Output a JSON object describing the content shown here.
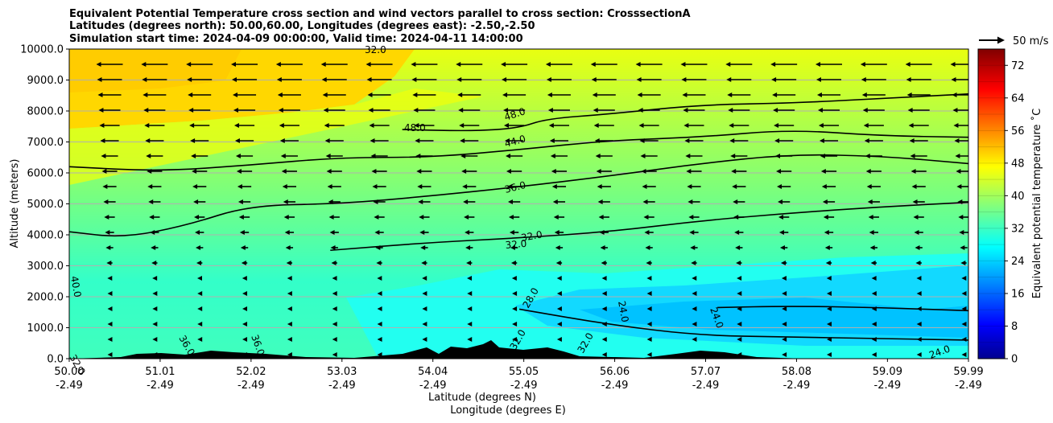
{
  "chart_data": {
    "type": "heatmap",
    "title_lines": [
      "Equivalent Potential Temperature cross section and wind vectors parallel to cross section: CrosssectionA",
      "Latitudes (degrees north): 50.00,60.00, Longitudes (degrees east): -2.50,-2.50",
      "Simulation start time: 2024-04-09 00:00:00, Valid time: 2024-04-11 14:00:00"
    ],
    "ylabel": "Altitude (meters)",
    "xlabel_lines": [
      "Latitude (degrees N)",
      "Longitude (degrees E)"
    ],
    "ylim": [
      0,
      10000
    ],
    "xlim": [
      50.0,
      59.99
    ],
    "grid": "horizontal",
    "yticks": [
      {
        "value": 0,
        "label": "0.0"
      },
      {
        "value": 1000,
        "label": "1000.0"
      },
      {
        "value": 2000,
        "label": "2000.0"
      },
      {
        "value": 3000,
        "label": "3000.0"
      },
      {
        "value": 4000,
        "label": "4000.0"
      },
      {
        "value": 5000,
        "label": "5000.0"
      },
      {
        "value": 6000,
        "label": "6000.0"
      },
      {
        "value": 7000,
        "label": "7000.0"
      },
      {
        "value": 8000,
        "label": "8000.0"
      },
      {
        "value": 9000,
        "label": "9000.0"
      },
      {
        "value": 10000,
        "label": "10000.0"
      }
    ],
    "xticks": [
      {
        "value": 50.0,
        "lat": "50.00",
        "lon": "-2.49"
      },
      {
        "value": 51.01,
        "lat": "51.01",
        "lon": "-2.49"
      },
      {
        "value": 52.02,
        "lat": "52.02",
        "lon": "-2.49"
      },
      {
        "value": 53.03,
        "lat": "53.03",
        "lon": "-2.49"
      },
      {
        "value": 54.04,
        "lat": "54.04",
        "lon": "-2.49"
      },
      {
        "value": 55.05,
        "lat": "55.05",
        "lon": "-2.49"
      },
      {
        "value": 56.06,
        "lat": "56.06",
        "lon": "-2.49"
      },
      {
        "value": 57.07,
        "lat": "57.07",
        "lon": "-2.49"
      },
      {
        "value": 58.08,
        "lat": "58.08",
        "lon": "-2.49"
      },
      {
        "value": 59.09,
        "lat": "59.09",
        "lon": "-2.49"
      },
      {
        "value": 59.99,
        "lat": "59.99",
        "lon": "-2.49"
      }
    ],
    "colorbar": {
      "label": "Equivalent potential temperature ˚C",
      "range": [
        0,
        76
      ],
      "ticks": [
        "0",
        "8",
        "16",
        "24",
        "32",
        "40",
        "48",
        "56",
        "64",
        "72"
      ],
      "colormap": "jet"
    },
    "quiver_key": {
      "label": "50 m/s",
      "speed": 50
    },
    "contours": [
      {
        "level": "48.0",
        "points": [
          [
            53.7,
            7400
          ],
          [
            54.5,
            7350
          ],
          [
            55.0,
            7450
          ],
          [
            55.3,
            7750
          ],
          [
            56.0,
            7900
          ],
          [
            57.0,
            8200
          ],
          [
            58.0,
            8250
          ],
          [
            59.0,
            8400
          ],
          [
            59.99,
            8550
          ]
        ]
      },
      {
        "level": "44.0",
        "points": [
          [
            50.0,
            6200
          ],
          [
            51.0,
            6050
          ],
          [
            52.0,
            6250
          ],
          [
            53.0,
            6500
          ],
          [
            54.0,
            6500
          ],
          [
            55.0,
            6750
          ],
          [
            56.0,
            7050
          ],
          [
            57.0,
            7150
          ],
          [
            58.0,
            7400
          ],
          [
            59.0,
            7200
          ],
          [
            59.99,
            7150
          ]
        ]
      },
      {
        "level": "36.0",
        "points": [
          [
            50.0,
            4100
          ],
          [
            50.6,
            3900
          ],
          [
            51.3,
            4300
          ],
          [
            52.0,
            4950
          ],
          [
            53.0,
            5000
          ],
          [
            54.0,
            5250
          ],
          [
            55.0,
            5550
          ],
          [
            56.0,
            5900
          ],
          [
            57.0,
            6300
          ],
          [
            58.0,
            6600
          ],
          [
            59.0,
            6550
          ],
          [
            59.99,
            6300
          ]
        ]
      },
      {
        "level": "32.0",
        "points": [
          [
            52.9,
            3500
          ],
          [
            54.0,
            3750
          ],
          [
            55.0,
            3900
          ],
          [
            56.0,
            4100
          ],
          [
            57.0,
            4450
          ],
          [
            58.0,
            4700
          ],
          [
            59.0,
            4900
          ],
          [
            59.99,
            5050
          ]
        ]
      },
      {
        "level": "28.0",
        "points": [
          [
            55.0,
            1600
          ],
          [
            56.0,
            1100
          ],
          [
            57.0,
            750
          ],
          [
            58.0,
            700
          ],
          [
            59.0,
            650
          ],
          [
            59.99,
            600
          ]
        ]
      },
      {
        "level": "24.0",
        "points": [
          [
            57.2,
            1650
          ],
          [
            58.0,
            1700
          ],
          [
            59.0,
            1650
          ],
          [
            59.99,
            1550
          ]
        ]
      }
    ],
    "contour_labels": [
      "32.0",
      "48.0",
      "48.0",
      "44.0",
      "36.0",
      "32.0",
      "32.0",
      "28.0",
      "24.0",
      "24.0",
      "40.0",
      "36.0",
      "36.0",
      "24.0",
      "32.0",
      "32.0",
      "32.0"
    ]
  }
}
